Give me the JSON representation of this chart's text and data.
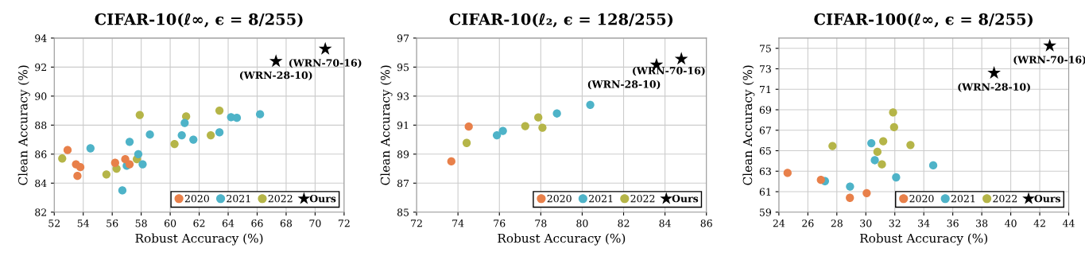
{
  "chart_data": [
    {
      "type": "scatter",
      "title": "CIFAR-10(ℓ∞, ϵ = 8/255)",
      "xlabel": "Robust Accuracy (%)",
      "ylabel": "Clean Accuracy (%)",
      "xlim": [
        52,
        72
      ],
      "xticks": [
        52,
        54,
        56,
        58,
        60,
        62,
        64,
        66,
        68,
        70,
        72
      ],
      "ylim": [
        82,
        94
      ],
      "yticks": [
        82,
        84,
        86,
        88,
        90,
        92,
        94
      ],
      "grid": true,
      "legend": "bottom right",
      "series": [
        {
          "name": "2020",
          "color": "#e8804a",
          "marker": "circle",
          "x": [
            52.92,
            53.5,
            53.8,
            53.6,
            56.2,
            56.9,
            57.2
          ],
          "values": [
            86.28,
            85.3,
            85.1,
            84.5,
            85.4,
            85.65,
            85.3
          ]
        },
        {
          "name": "2021",
          "color": "#4eb3c8",
          "marker": "circle",
          "x": [
            54.5,
            57.2,
            57.8,
            57.0,
            58.1,
            56.7,
            58.6,
            60.8,
            61.0,
            61.6,
            63.4,
            64.2,
            64.6,
            66.2
          ],
          "values": [
            86.4,
            86.85,
            86.0,
            85.2,
            85.3,
            83.5,
            87.35,
            87.3,
            88.15,
            87.0,
            87.5,
            88.55,
            88.5,
            88.75
          ]
        },
        {
          "name": "2022",
          "color": "#b5b548",
          "marker": "circle",
          "x": [
            52.55,
            55.6,
            56.3,
            57.7,
            57.9,
            60.3,
            61.1,
            62.8,
            63.4
          ],
          "values": [
            85.7,
            84.6,
            85.0,
            85.65,
            88.7,
            86.7,
            88.6,
            87.3,
            89.0
          ]
        },
        {
          "name": "Ours",
          "color": "#000000",
          "marker": "star",
          "x": [
            67.3,
            70.7
          ],
          "values": [
            92.4,
            93.25
          ]
        }
      ],
      "annotations": [
        {
          "text": "(WRN-28-10)",
          "x": 67.3,
          "y": 92.4
        },
        {
          "text": "(WRN-70-16)",
          "x": 70.7,
          "y": 93.25
        }
      ]
    },
    {
      "type": "scatter",
      "title": "CIFAR-10(ℓ₂, ϵ = 128/255)",
      "xlabel": "Robust Accuracy (%)",
      "ylabel": "Clean Accuracy (%)",
      "xlim": [
        72,
        86
      ],
      "xticks": [
        72,
        74,
        76,
        78,
        80,
        82,
        84,
        86
      ],
      "ylim": [
        85,
        97
      ],
      "yticks": [
        85,
        87,
        89,
        91,
        93,
        95,
        97
      ],
      "grid": true,
      "legend": "bottom right",
      "series": [
        {
          "name": "2020",
          "color": "#e8804a",
          "marker": "circle",
          "x": [
            73.68,
            74.52
          ],
          "values": [
            88.5,
            90.9
          ]
        },
        {
          "name": "2021",
          "color": "#4eb3c8",
          "marker": "circle",
          "x": [
            75.88,
            76.17,
            78.78,
            80.39
          ],
          "values": [
            90.3,
            90.6,
            91.8,
            92.4
          ]
        },
        {
          "name": "2022",
          "color": "#b5b548",
          "marker": "circle",
          "x": [
            74.42,
            77.25,
            77.88,
            78.08
          ],
          "values": [
            89.77,
            90.93,
            91.53,
            90.82
          ]
        },
        {
          "name": "Ours",
          "color": "#000000",
          "marker": "star",
          "x": [
            83.59,
            84.79
          ],
          "values": [
            95.16,
            95.56
          ]
        }
      ],
      "annotations": [
        {
          "text": "(WRN-28-10)",
          "x": 83.59,
          "y": 95.16
        },
        {
          "text": "(WRN-70-16)",
          "x": 84.79,
          "y": 95.56
        }
      ]
    },
    {
      "type": "scatter",
      "title": "CIFAR-100(ℓ∞, ϵ = 8/255)",
      "xlabel": "Robust Accuracy (%)",
      "ylabel": "Clean Accuracy (%)",
      "xlim": [
        24,
        44
      ],
      "xticks": [
        24,
        26,
        28,
        30,
        32,
        34,
        36,
        38,
        40,
        42,
        44
      ],
      "ylim": [
        59,
        76
      ],
      "yticks": [
        59,
        61,
        63,
        65,
        67,
        69,
        71,
        73,
        75
      ],
      "grid": true,
      "legend": "bottom right",
      "series": [
        {
          "name": "2020",
          "color": "#e8804a",
          "marker": "circle",
          "x": [
            24.6,
            26.9,
            28.9,
            30.06
          ],
          "values": [
            62.83,
            62.15,
            60.4,
            60.86
          ]
        },
        {
          "name": "2021",
          "color": "#4eb3c8",
          "marker": "circle",
          "x": [
            27.18,
            28.91,
            30.38,
            30.62,
            32.09,
            34.65
          ],
          "values": [
            62.03,
            61.5,
            65.73,
            64.07,
            62.4,
            63.57
          ]
        },
        {
          "name": "2022",
          "color": "#b5b548",
          "marker": "circle",
          "x": [
            27.7,
            30.8,
            31.11,
            31.2,
            31.88,
            31.95,
            33.08
          ],
          "values": [
            65.46,
            64.89,
            63.67,
            65.93,
            68.74,
            67.3,
            65.56
          ]
        },
        {
          "name": "Ours",
          "color": "#000000",
          "marker": "star",
          "x": [
            38.85,
            42.69
          ],
          "values": [
            72.59,
            75.25
          ]
        }
      ],
      "annotations": [
        {
          "text": "(WRN-28-10)",
          "x": 38.85,
          "y": 72.59
        },
        {
          "text": "(WRN-70-16)",
          "x": 42.69,
          "y": 75.25
        }
      ]
    }
  ]
}
